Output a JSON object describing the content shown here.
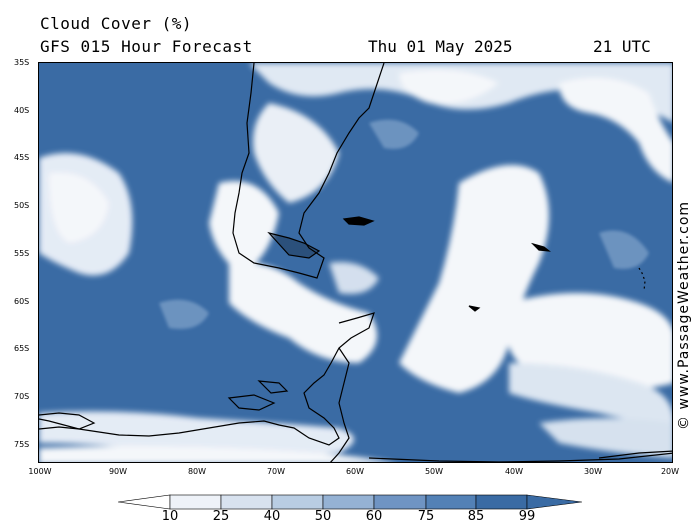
{
  "header": {
    "title": "Cloud Cover (%)",
    "subtitle": "GFS 015 Hour Forecast",
    "date": "Thu 01 May 2025",
    "time": "21 UTC"
  },
  "map": {
    "latitude_labels": [
      "35S",
      "40S",
      "45S",
      "50S",
      "55S",
      "60S",
      "65S",
      "70S",
      "75S"
    ],
    "longitude_labels": [
      "100W",
      "90W",
      "80W",
      "70W",
      "60W",
      "50W",
      "40W",
      "30W",
      "20W"
    ],
    "lat_range": [
      -35,
      -77
    ],
    "lon_range": [
      -100,
      -20
    ]
  },
  "legend": {
    "levels": [
      "10",
      "25",
      "40",
      "50",
      "60",
      "75",
      "85",
      "99"
    ],
    "colors": [
      "#ffffff",
      "#eef2f8",
      "#d8e2ef",
      "#b9cde3",
      "#95b2d4",
      "#6f94c3",
      "#5381b6",
      "#3a6ba4"
    ]
  },
  "copyright": "© www.PassageWeather.com"
}
